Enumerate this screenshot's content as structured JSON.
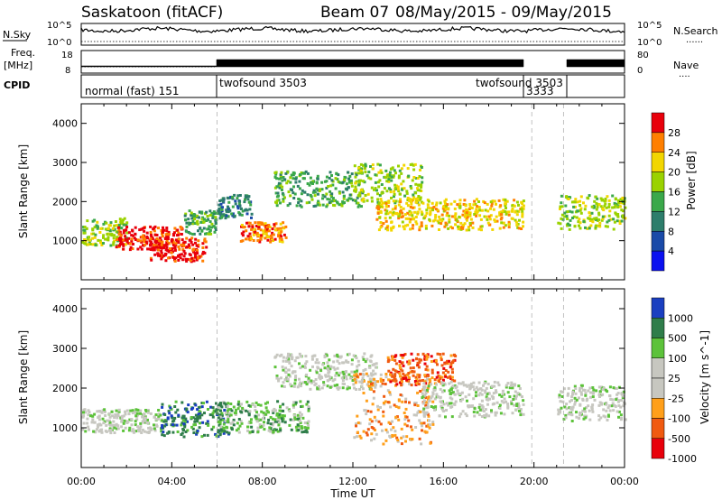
{
  "header": {
    "station": "Saskatoon (fitACF)",
    "beam": "Beam 07",
    "date_range": "08/May/2015 - 09/May/2015"
  },
  "panels": {
    "nsky": {
      "left_label": "N.Sky",
      "left_ticks": [
        "10^5",
        "10^0"
      ],
      "right_ticks": [
        "10^5",
        "10^0"
      ],
      "right_label": "N.Search",
      "right_legend_line": "......"
    },
    "freq": {
      "left_label_1": "Freq.",
      "left_label_2": "[MHz]",
      "left_ticks": [
        "18",
        "8"
      ],
      "right_ticks": [
        "80",
        "0"
      ],
      "right_label": "Nave",
      "right_legend_line": "...."
    },
    "cpid": {
      "label": "CPID",
      "segments": [
        {
          "text": "normal (fast) 151",
          "start_hour": 0
        },
        {
          "text": "twofsound 3503",
          "start_hour": 6
        },
        {
          "text": "twofsound 3503",
          "start_hour": 17.5
        },
        {
          "text": "3333",
          "start_hour": 19.9
        }
      ]
    }
  },
  "chart_data": [
    {
      "type": "heatmap",
      "name": "power",
      "ylabel": "Slant Range [km]",
      "xlabel": "",
      "xlim": [
        0,
        24
      ],
      "ylim": [
        0,
        4500
      ],
      "yticks": [
        1000,
        2000,
        3000,
        4000
      ],
      "colorbar": {
        "label": "Power [dB]",
        "ticks": [
          "28",
          "24",
          "20",
          "16",
          "12",
          "8",
          "4"
        ],
        "colors": [
          "#e8000b",
          "#ff7f00",
          "#f2d600",
          "#9ad200",
          "#3aa84a",
          "#2d7d6b",
          "#1a4aa8",
          "#0a10f0"
        ]
      },
      "scatter_bands": [
        {
          "t0": 0.0,
          "t1": 2.0,
          "r0": 900,
          "r1": 1600,
          "level": 3
        },
        {
          "t0": 1.5,
          "t1": 4.5,
          "r0": 800,
          "r1": 1400,
          "level": 0
        },
        {
          "t0": 3.0,
          "t1": 5.5,
          "r0": 500,
          "r1": 1100,
          "level": 0
        },
        {
          "t0": 4.5,
          "t1": 6.0,
          "r0": 1200,
          "r1": 1800,
          "level": 4
        },
        {
          "t0": 6.0,
          "t1": 7.5,
          "r0": 1600,
          "r1": 2200,
          "level": 5
        },
        {
          "t0": 7.0,
          "t1": 9.0,
          "r0": 1000,
          "r1": 1500,
          "level": 1
        },
        {
          "t0": 8.5,
          "t1": 12.5,
          "r0": 1900,
          "r1": 2800,
          "level": 4
        },
        {
          "t0": 12.0,
          "t1": 15.0,
          "r0": 2000,
          "r1": 3000,
          "level": 3
        },
        {
          "t0": 13.0,
          "t1": 19.5,
          "r0": 1300,
          "r1": 2100,
          "level": 2
        },
        {
          "t0": 21.0,
          "t1": 24.0,
          "r0": 1300,
          "r1": 2200,
          "level": 3
        }
      ]
    },
    {
      "type": "heatmap",
      "name": "velocity",
      "ylabel": "Slant Range [km]",
      "xlabel": "Time UT",
      "xlim": [
        0,
        24
      ],
      "ylim": [
        0,
        4500
      ],
      "yticks": [
        1000,
        2000,
        3000,
        4000
      ],
      "xticks": [
        "00:00",
        "04:00",
        "08:00",
        "12:00",
        "16:00",
        "20:00",
        "00:00"
      ],
      "colorbar": {
        "label": "Velocity [m s^-1]",
        "ticks": [
          "1000",
          "500",
          "100",
          "25",
          "-25",
          "-100",
          "-500",
          "-1000"
        ],
        "colors": [
          "#1a3fc0",
          "#2f7d4a",
          "#5cc23a",
          "#c7c7c0",
          "#c7c7c0",
          "#ff9f1a",
          "#f05a10",
          "#e8000b"
        ]
      },
      "scatter_bands": [
        {
          "t0": 0.0,
          "t1": 3.5,
          "r0": 900,
          "r1": 1500,
          "level": 3
        },
        {
          "t0": 3.5,
          "t1": 6.5,
          "r0": 800,
          "r1": 1700,
          "level": 1
        },
        {
          "t0": 6.0,
          "t1": 10.0,
          "r0": 900,
          "r1": 1700,
          "level": 2
        },
        {
          "t0": 8.5,
          "t1": 13.0,
          "r0": 2000,
          "r1": 2900,
          "level": 3
        },
        {
          "t0": 12.0,
          "t1": 15.5,
          "r0": 600,
          "r1": 2400,
          "level": 5
        },
        {
          "t0": 13.5,
          "t1": 16.5,
          "r0": 2100,
          "r1": 2900,
          "level": 6
        },
        {
          "t0": 15.0,
          "t1": 19.5,
          "r0": 1300,
          "r1": 2200,
          "level": 3
        },
        {
          "t0": 21.0,
          "t1": 24.0,
          "r0": 1200,
          "r1": 2100,
          "level": 3
        }
      ]
    }
  ]
}
